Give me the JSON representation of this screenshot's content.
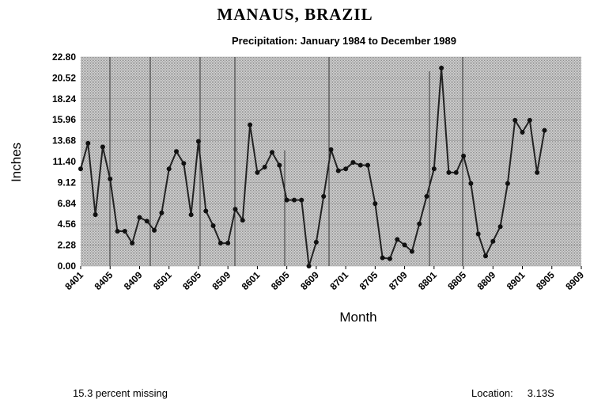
{
  "header": {
    "title": "MANAUS, BRAZIL",
    "subtitle": "Precipitation: January 1984 to December 1989"
  },
  "footer": {
    "missing_text": "15.3 percent missing",
    "location_label": "Location:",
    "location_value": "3.13S"
  },
  "colors": {
    "plot_background": "#bdbdbd",
    "line": "#222222",
    "marker": "#111111"
  },
  "chart_data": {
    "type": "line",
    "title": "MANAUS, BRAZIL",
    "subtitle": "Precipitation: January 1984 to December 1989",
    "xlabel": "Month",
    "ylabel": "Inches",
    "ylim": [
      0,
      22.8
    ],
    "yticks": [
      "0.00",
      "2.28",
      "4.56",
      "6.84",
      "9.12",
      "11.40",
      "13.68",
      "15.96",
      "18.24",
      "20.52",
      "22.80"
    ],
    "xticks": [
      "8401",
      "8405",
      "8409",
      "8501",
      "8505",
      "8509",
      "8601",
      "8605",
      "8609",
      "8701",
      "8705",
      "8709",
      "8801",
      "8805",
      "8809",
      "8901",
      "8905",
      "8909"
    ],
    "series": [
      {
        "values": [
          10.6,
          13.4,
          5.6,
          13.0,
          9.5,
          3.8,
          3.8,
          2.5,
          5.3,
          4.9,
          3.9,
          5.8,
          10.6,
          12.5,
          11.2,
          5.6,
          13.6,
          6.0,
          4.4,
          2.5,
          2.5,
          6.2,
          5.0,
          15.4,
          10.2,
          10.8,
          12.4,
          11.0,
          7.2,
          7.2,
          7.2,
          0.0,
          2.6,
          7.6,
          12.7,
          10.4,
          10.6,
          11.3,
          11.0,
          11.0,
          6.8,
          0.9,
          0.8,
          2.9,
          2.3,
          1.6,
          4.6,
          7.6,
          10.6,
          21.6,
          10.2,
          10.2,
          12.0,
          9.0,
          3.5,
          1.1,
          2.7,
          4.3,
          9.0,
          15.9,
          14.6,
          15.9,
          10.2,
          14.8
        ]
      }
    ],
    "grid": true,
    "legend": "none"
  }
}
